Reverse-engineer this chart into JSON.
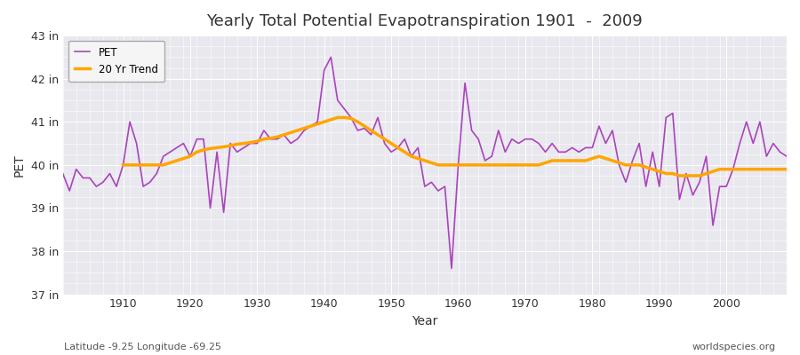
{
  "title": "Yearly Total Potential Evapotranspiration 1901  -  2009",
  "xlabel": "Year",
  "ylabel": "PET",
  "subtitle_left": "Latitude -9.25 Longitude -69.25",
  "subtitle_right": "worldspecies.org",
  "pet_color": "#AA44BB",
  "trend_color": "#FFA500",
  "fig_facecolor": "#FFFFFF",
  "ax_facecolor": "#E8E8EE",
  "grid_color": "#FFFFFF",
  "ylim": [
    37,
    43
  ],
  "yticks": [
    37,
    38,
    39,
    40,
    41,
    42,
    43
  ],
  "ytick_labels": [
    "37 in",
    "38 in",
    "39 in",
    "40 in",
    "41 in",
    "42 in",
    "43 in"
  ],
  "xlim": [
    1901,
    2009
  ],
  "xticks": [
    1910,
    1920,
    1930,
    1940,
    1950,
    1960,
    1970,
    1980,
    1990,
    2000
  ],
  "years": [
    1901,
    1902,
    1903,
    1904,
    1905,
    1906,
    1907,
    1908,
    1909,
    1910,
    1911,
    1912,
    1913,
    1914,
    1915,
    1916,
    1917,
    1918,
    1919,
    1920,
    1921,
    1922,
    1923,
    1924,
    1925,
    1926,
    1927,
    1928,
    1929,
    1930,
    1931,
    1932,
    1933,
    1934,
    1935,
    1936,
    1937,
    1938,
    1939,
    1940,
    1941,
    1942,
    1943,
    1944,
    1945,
    1946,
    1947,
    1948,
    1949,
    1950,
    1951,
    1952,
    1953,
    1954,
    1955,
    1956,
    1957,
    1958,
    1959,
    1960,
    1961,
    1962,
    1963,
    1964,
    1965,
    1966,
    1967,
    1968,
    1969,
    1970,
    1971,
    1972,
    1973,
    1974,
    1975,
    1976,
    1977,
    1978,
    1979,
    1980,
    1981,
    1982,
    1983,
    1984,
    1985,
    1986,
    1987,
    1988,
    1989,
    1990,
    1991,
    1992,
    1993,
    1994,
    1995,
    1996,
    1997,
    1998,
    1999,
    2000,
    2001,
    2002,
    2003,
    2004,
    2005,
    2006,
    2007,
    2008,
    2009
  ],
  "pet_values": [
    39.8,
    39.4,
    39.9,
    39.7,
    39.7,
    39.5,
    39.6,
    39.8,
    39.5,
    40.0,
    41.0,
    40.5,
    39.5,
    39.6,
    39.8,
    40.2,
    40.3,
    40.4,
    40.5,
    40.2,
    40.6,
    40.6,
    39.0,
    40.3,
    38.9,
    40.5,
    40.3,
    40.4,
    40.5,
    40.5,
    40.8,
    40.6,
    40.6,
    40.7,
    40.5,
    40.6,
    40.8,
    40.9,
    41.0,
    42.2,
    42.5,
    41.5,
    41.3,
    41.1,
    40.8,
    40.85,
    40.7,
    41.1,
    40.5,
    40.3,
    40.4,
    40.6,
    40.2,
    40.4,
    39.5,
    39.6,
    39.4,
    39.5,
    37.6,
    40.0,
    41.9,
    40.8,
    40.6,
    40.1,
    40.2,
    40.8,
    40.3,
    40.6,
    40.5,
    40.6,
    40.6,
    40.5,
    40.3,
    40.5,
    40.3,
    40.3,
    40.4,
    40.3,
    40.4,
    40.4,
    40.9,
    40.5,
    40.8,
    40.0,
    39.6,
    40.1,
    40.5,
    39.5,
    40.3,
    39.5,
    41.1,
    41.2,
    39.2,
    39.8,
    39.3,
    39.6,
    40.2,
    38.6,
    39.5,
    39.5,
    39.9,
    40.5,
    41.0,
    40.5,
    41.0,
    40.2,
    40.5,
    40.3,
    40.2
  ],
  "trend_values": [
    null,
    null,
    null,
    null,
    null,
    null,
    null,
    null,
    null,
    40.0,
    40.0,
    40.0,
    40.0,
    40.0,
    40.0,
    40.0,
    40.05,
    40.1,
    40.15,
    40.2,
    40.3,
    40.35,
    40.38,
    40.4,
    40.42,
    40.45,
    40.48,
    40.5,
    40.52,
    40.55,
    40.6,
    40.62,
    40.65,
    40.7,
    40.75,
    40.8,
    40.85,
    40.9,
    40.95,
    41.0,
    41.05,
    41.1,
    41.1,
    41.08,
    41.0,
    40.9,
    40.8,
    40.7,
    40.6,
    40.5,
    40.4,
    40.3,
    40.2,
    40.15,
    40.1,
    40.05,
    40.0,
    40.0,
    40.0,
    40.0,
    40.0,
    40.0,
    40.0,
    40.0,
    40.0,
    40.0,
    40.0,
    40.0,
    40.0,
    40.0,
    40.0,
    40.0,
    40.05,
    40.1,
    40.1,
    40.1,
    40.1,
    40.1,
    40.1,
    40.15,
    40.2,
    40.15,
    40.1,
    40.05,
    40.0,
    40.0,
    40.0,
    39.95,
    39.9,
    39.85,
    39.8,
    39.8,
    39.75,
    39.75,
    39.75,
    39.75,
    39.8,
    39.85,
    39.9,
    39.9,
    39.9,
    39.9,
    39.9,
    39.9,
    39.9,
    39.9,
    39.9,
    39.9,
    39.9
  ]
}
